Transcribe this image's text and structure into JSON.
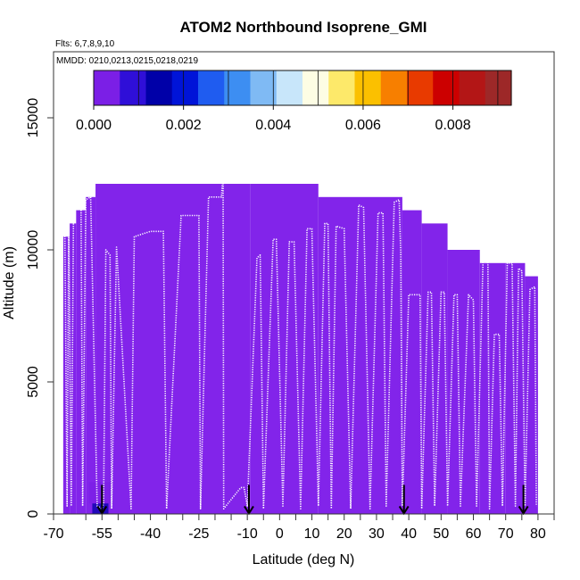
{
  "chart_data": {
    "type": "heatmap",
    "title": "ATOM2 Northbound Isoprene_GMI",
    "subtitle_flights": "Flts: 6,7,8,9,10",
    "subtitle_dates": "MMDD: 0210,0213,0215,0218,0219",
    "xlabel": "Latitude (deg N)",
    "ylabel": "Altitude (m)",
    "xlim": [
      -70,
      85
    ],
    "ylim": [
      0,
      17500
    ],
    "x_ticks": [
      -70,
      -55,
      -40,
      -25,
      -10,
      0,
      10,
      20,
      30,
      40,
      50,
      60,
      70,
      80
    ],
    "x_tick_labels": [
      "-70",
      "-55",
      "-40",
      "-25",
      "-10",
      "0",
      "10",
      "20",
      "30",
      "40",
      "50",
      "60",
      "70",
      "80"
    ],
    "x_minor_ticks": [
      -60,
      -50,
      -45,
      -35,
      -30,
      -20,
      -15,
      -5,
      5,
      15,
      25,
      35,
      45,
      55,
      65,
      75,
      85
    ],
    "y_ticks": [
      0,
      5000,
      10000,
      15000
    ],
    "y_tick_labels": [
      "0",
      "5000",
      "10000",
      "15000"
    ],
    "colorbar": {
      "ticks": [
        0,
        0.002,
        0.004,
        0.006,
        0.008
      ],
      "tick_labels": [
        "0.000",
        "0.002",
        "0.004",
        "0.006",
        "0.008"
      ],
      "range": [
        0,
        0.0093
      ],
      "colors": [
        "#7b1fe6",
        "#2f0fd8",
        "#0000a8",
        "#0014d8",
        "#1f5cf0",
        "#3d8ef2",
        "#7fbaf4",
        "#c8e6fa",
        "#fdfde4",
        "#fde96a",
        "#fbc000",
        "#f77f00",
        "#e83a00",
        "#cc0000",
        "#b31616",
        "#9d2828"
      ]
    },
    "background_value_color": "#8224ea",
    "curtain_columns": [
      {
        "lat0": -67,
        "lat1": -65,
        "top": 10500
      },
      {
        "lat0": -65,
        "lat1": -63,
        "top": 11000
      },
      {
        "lat0": -63,
        "lat1": -60,
        "top": 11500
      },
      {
        "lat0": -60,
        "lat1": -57,
        "top": 12000
      },
      {
        "lat0": -57,
        "lat1": -9,
        "top": 12500
      },
      {
        "lat0": -9,
        "lat1": 12,
        "top": 12500
      },
      {
        "lat0": 12,
        "lat1": 38,
        "top": 12000
      },
      {
        "lat0": 38,
        "lat1": 44,
        "top": 11500
      },
      {
        "lat0": 44,
        "lat1": 52,
        "top": 11000
      },
      {
        "lat0": 52,
        "lat1": 62,
        "top": 10000
      },
      {
        "lat0": 62,
        "lat1": 70,
        "top": 9500
      },
      {
        "lat0": 70,
        "lat1": 76,
        "top": 9500
      },
      {
        "lat0": 76,
        "lat1": 80,
        "top": 9000
      }
    ],
    "high_value_patches": [
      {
        "lat0": -58,
        "lat1": -53,
        "alt0": 0,
        "alt1": 400,
        "value": 0.0012
      },
      {
        "lat0": -59,
        "lat1": -52,
        "alt0": 400,
        "alt1": 1200,
        "value": 0.0004
      }
    ],
    "flight_track": [
      [
        -67.5,
        200
      ],
      [
        -67.2,
        10500
      ],
      [
        -66.5,
        10500
      ],
      [
        -65.8,
        300
      ],
      [
        -65.3,
        10900
      ],
      [
        -64.5,
        300
      ],
      [
        -63.8,
        11400
      ],
      [
        -61.5,
        11800
      ],
      [
        -61.0,
        300
      ],
      [
        -60.0,
        11900
      ],
      [
        -58.5,
        12000
      ],
      [
        -56.5,
        300
      ],
      [
        -55.0,
        200
      ],
      [
        -54.5,
        400
      ],
      [
        -53.8,
        10000
      ],
      [
        -52.5,
        9800
      ],
      [
        -52.0,
        200
      ],
      [
        -50.5,
        10100
      ],
      [
        -46.0,
        200
      ],
      [
        -45.0,
        10500
      ],
      [
        -40.0,
        10700
      ],
      [
        -36.0,
        10700
      ],
      [
        -35.0,
        200
      ],
      [
        -30.5,
        11300
      ],
      [
        -25.0,
        11300
      ],
      [
        -24.5,
        200
      ],
      [
        -22.0,
        12000
      ],
      [
        -18.0,
        12000
      ],
      [
        -17.5,
        12900
      ],
      [
        -17.3,
        200
      ],
      [
        -12.0,
        1000
      ],
      [
        -11.0,
        1000
      ],
      [
        -10.0,
        300
      ],
      [
        -7.0,
        9700
      ],
      [
        -6.0,
        9800
      ],
      [
        -5.0,
        200
      ],
      [
        -2.0,
        10400
      ],
      [
        -1.0,
        10400
      ],
      [
        1.0,
        300
      ],
      [
        3.0,
        10300
      ],
      [
        4.5,
        10300
      ],
      [
        6.5,
        200
      ],
      [
        8.5,
        10800
      ],
      [
        10.0,
        10800
      ],
      [
        12.0,
        300
      ],
      [
        14.0,
        11000
      ],
      [
        15.0,
        11000
      ],
      [
        16.0,
        200
      ],
      [
        17.5,
        10900
      ],
      [
        20.0,
        10800
      ],
      [
        22.0,
        200
      ],
      [
        24.5,
        11700
      ],
      [
        26.0,
        11600
      ],
      [
        28.0,
        200
      ],
      [
        30.5,
        11400
      ],
      [
        32.0,
        11400
      ],
      [
        33.0,
        300
      ],
      [
        35.5,
        11800
      ],
      [
        37.0,
        11900
      ],
      [
        37.5,
        9900
      ],
      [
        38.0,
        300
      ],
      [
        40.0,
        8300
      ],
      [
        43.5,
        8300
      ],
      [
        44.0,
        200
      ],
      [
        46.0,
        8400
      ],
      [
        47.0,
        8400
      ],
      [
        48.0,
        300
      ],
      [
        50.0,
        8400
      ],
      [
        51.0,
        8400
      ],
      [
        52.0,
        300
      ],
      [
        54.0,
        8300
      ],
      [
        55.0,
        8300
      ],
      [
        56.0,
        300
      ],
      [
        58.5,
        8300
      ],
      [
        60.0,
        8100
      ],
      [
        61.0,
        300
      ],
      [
        63.0,
        9700
      ],
      [
        64.5,
        9500
      ],
      [
        65.0,
        200
      ],
      [
        66.5,
        6800
      ],
      [
        68.0,
        6800
      ],
      [
        69.0,
        300
      ],
      [
        70.5,
        9500
      ],
      [
        72.0,
        9500
      ],
      [
        73.0,
        300
      ],
      [
        74.0,
        9300
      ],
      [
        75.0,
        9200
      ],
      [
        76.0,
        300
      ],
      [
        77.5,
        8500
      ],
      [
        79.0,
        8600
      ],
      [
        79.5,
        300
      ]
    ],
    "takeoff_arrows": [
      -55,
      -9.5,
      38.5,
      75.5
    ]
  }
}
